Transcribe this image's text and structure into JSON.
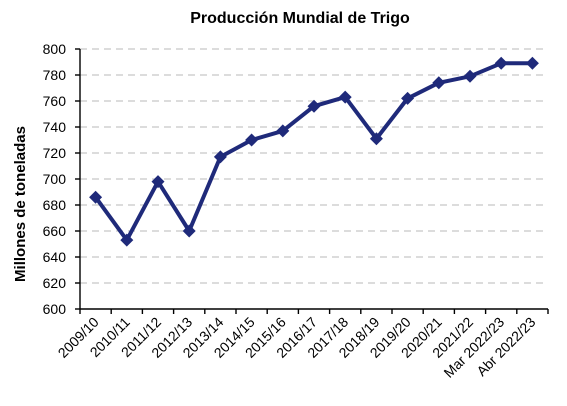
{
  "chart_data": {
    "type": "line",
    "title": "Producción Mundial de Trigo",
    "xlabel": "",
    "ylabel": "Millones de toneladas",
    "ylim": [
      600,
      800
    ],
    "yticks": [
      600,
      620,
      640,
      660,
      680,
      700,
      720,
      740,
      760,
      780,
      800
    ],
    "grid": true,
    "legend": "none",
    "categories": [
      "2009/10",
      "2010/11",
      "2011/12",
      "2012/13",
      "2013/14",
      "2014/15",
      "2015/16",
      "2016/17",
      "2017/18",
      "2018/19",
      "2019/20",
      "2020/21",
      "2021/22",
      "Mar 2022/23",
      "Abr 2022/23"
    ],
    "series": [
      {
        "values": [
          686,
          653,
          698,
          660,
          717,
          730,
          737,
          756,
          763,
          731,
          762,
          774,
          779,
          789,
          789
        ],
        "color": "#1f2a7a",
        "marker": "diamond"
      }
    ]
  }
}
